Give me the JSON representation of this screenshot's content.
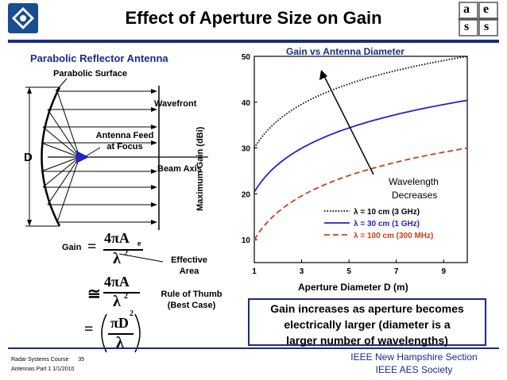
{
  "slide": {
    "title": "Effect of Aperture Size on Gain",
    "footer": {
      "course": "Radar Systems Course",
      "page": "35",
      "subtitle": "Antennas Part 1  1/1/2010",
      "org1": "IEEE New Hampshire Section",
      "org2": "IEEE AES Society"
    },
    "logo_letters": [
      "a",
      "e",
      "s",
      "s"
    ]
  },
  "diagram": {
    "heading": "Parabolic Reflector Antenna",
    "surface_label": "Parabolic Surface",
    "wavefront_label": "Wavefront",
    "feed_label_line1": "Antenna Feed",
    "feed_label_line2": "at Focus",
    "beam_axis_label": "Beam Axis",
    "diameter_label": "D"
  },
  "formulas": {
    "gain_label": "Gain",
    "eq": "=",
    "approx": "≅",
    "f1_num": "4πA",
    "f1_sub": "e",
    "f1_den": "λ",
    "f1_den_exp": "2",
    "f2_num": "4πA",
    "f2_den": "λ",
    "f2_den_exp": "2",
    "f3_num": "πD",
    "f3_den": "λ",
    "f3_exp": "2",
    "effective_area_line1": "Effective",
    "effective_area_line2": "Area",
    "rule_line1": "Rule of Thumb",
    "rule_line2": "(Best Case)"
  },
  "note": {
    "line1": "Gain increases as aperture becomes",
    "line2": "electrically larger (diameter is a",
    "line3": "larger number of wavelengths)"
  },
  "chart_data": {
    "type": "line",
    "title": "Gain vs Antenna Diameter",
    "xlabel": "Aperture Diameter D (m)",
    "ylabel": "Maximum Gain (dBi)",
    "xlim": [
      1,
      10
    ],
    "ylim": [
      5,
      50
    ],
    "xticks": [
      "1",
      "3",
      "5",
      "7",
      "9"
    ],
    "yticks": [
      "10",
      "20",
      "30",
      "40",
      "50"
    ],
    "grid": false,
    "legend_position": "bottom-right",
    "annotation_line1": "Wavelength",
    "annotation_line2": "Decreases",
    "series": [
      {
        "name": "λ = 10 cm (3 GHz)",
        "color": "#000000",
        "dash": "dotted",
        "x": [
          1,
          2,
          3,
          4,
          5,
          6,
          7,
          8,
          9,
          10
        ],
        "y": [
          30,
          36,
          39.5,
          42,
          44,
          45.5,
          46.9,
          48.1,
          49.1,
          50
        ]
      },
      {
        "name": "λ = 30 cm (1 GHz)",
        "color": "#2323c8",
        "dash": "solid",
        "x": [
          1,
          2,
          3,
          4,
          5,
          6,
          7,
          8,
          9,
          10
        ],
        "y": [
          20.4,
          26.4,
          30,
          32.4,
          34.4,
          36,
          37.3,
          38.5,
          39.5,
          40.4
        ]
      },
      {
        "name": "λ = 100 cm (300 MHz)",
        "color": "#c8401a",
        "dash": "dashed",
        "x": [
          1,
          2,
          3,
          4,
          5,
          6,
          7,
          8,
          9,
          10
        ],
        "y": [
          10,
          16,
          19.5,
          22,
          24,
          25.5,
          26.9,
          28.1,
          29.1,
          30
        ]
      }
    ]
  }
}
